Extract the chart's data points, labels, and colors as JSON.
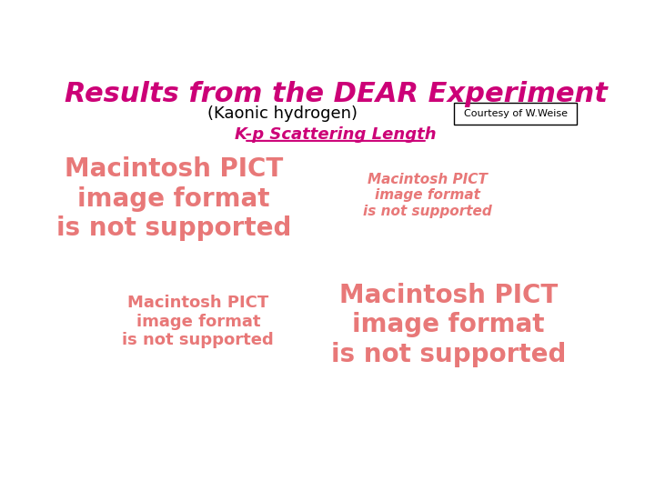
{
  "title": "Results from the DEAR Experiment",
  "subtitle": "(Kaonic hydrogen)",
  "courtesy": "Courtesy of W.Weise",
  "kp_label": "K-p Scattering Length",
  "title_color": "#cc0077",
  "subtitle_color": "#000000",
  "kp_color": "#cc0077",
  "bg_color": "#ffffff",
  "pict_color_large": "#e87878",
  "pict_color_small": "#e87878",
  "placeholder_texts": [
    "Macintosh PICT\nimage format\nis not supported",
    "Macintosh PICT\nimage format\nis not supported",
    "Macintosh PICT\nimage format\nis not supported",
    "Macintosh PICT\nimage format\nis not supported"
  ]
}
